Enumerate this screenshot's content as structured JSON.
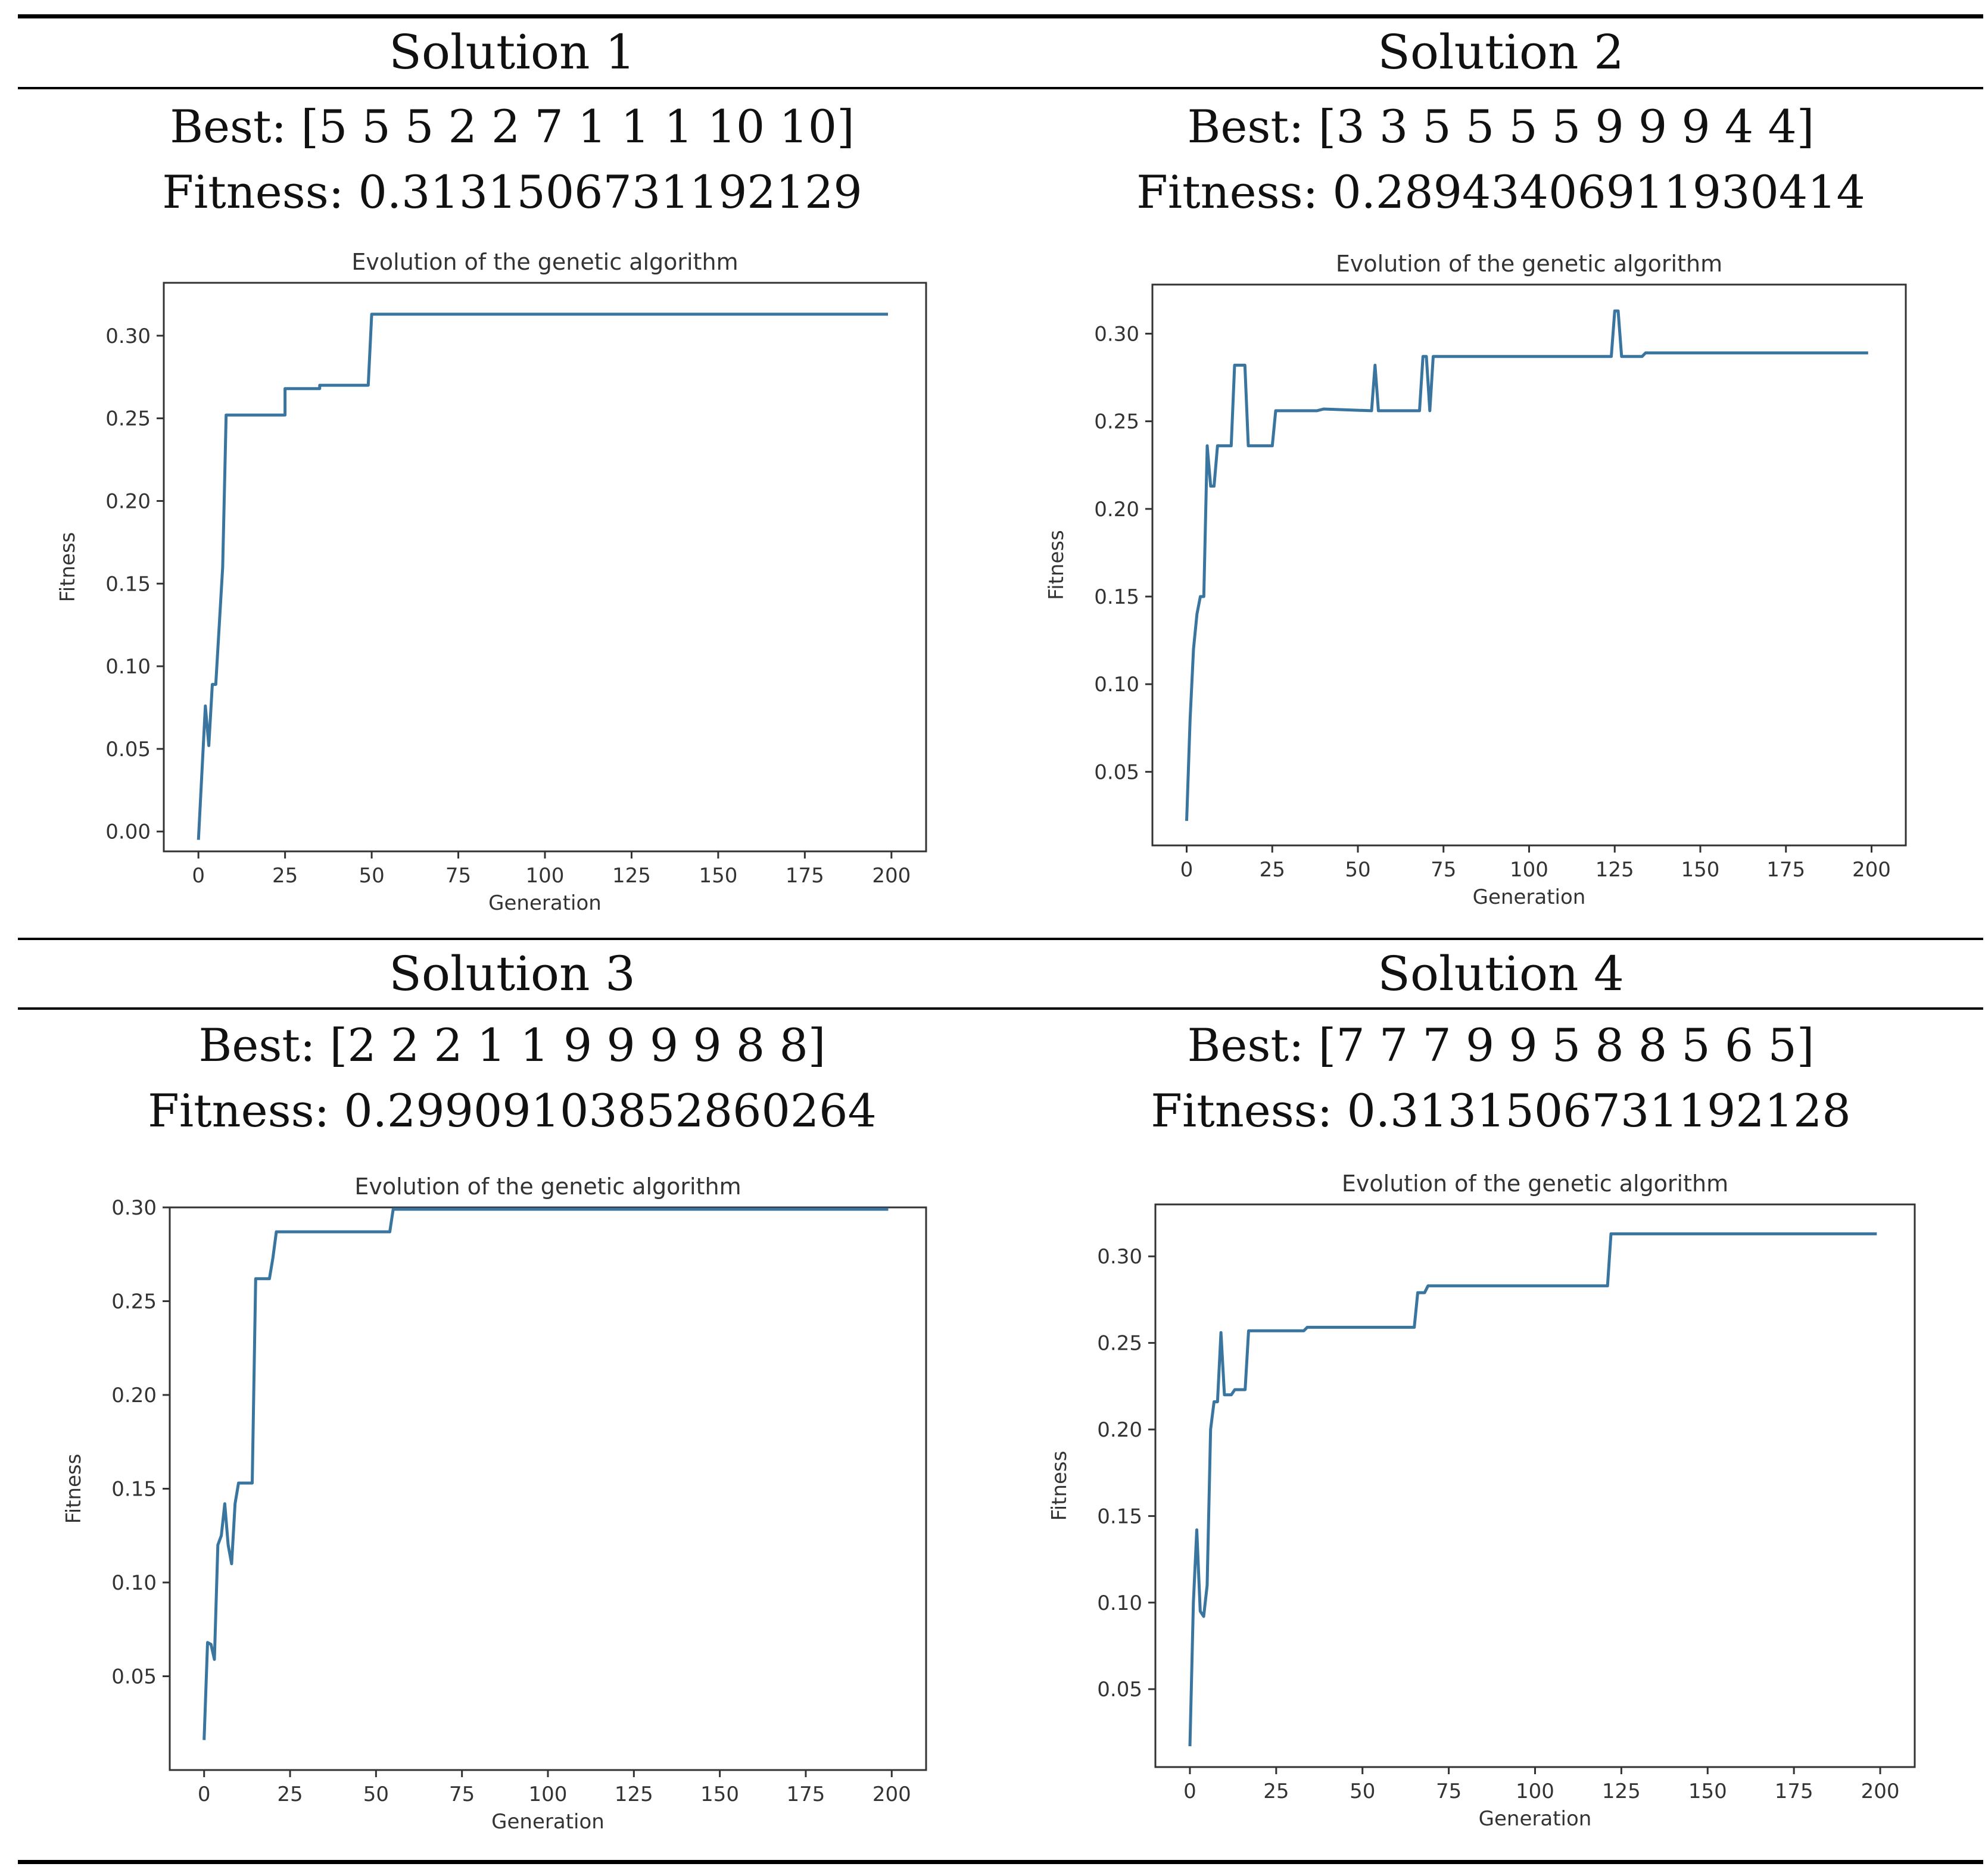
{
  "solutions": [
    {
      "title": "Solution 1",
      "best": "Best: [5 5 5 2 2 7 1 1 1 10 10]",
      "fitness": "Fitness: 0.3131506731192129",
      "chart_data": {
        "type": "line",
        "title": "Evolution of the genetic algorithm",
        "xlabel": "Generation",
        "ylabel": "Fitness",
        "xlim": [
          -10,
          210
        ],
        "ylim": [
          -0.012,
          0.332
        ],
        "xticks": [
          0,
          25,
          50,
          75,
          100,
          125,
          150,
          175,
          200
        ],
        "yticks": [
          0.0,
          0.05,
          0.1,
          0.15,
          0.2,
          0.25,
          0.3
        ],
        "ytick_labels": [
          "0.00",
          "0.05",
          "0.10",
          "0.15",
          "0.20",
          "0.25",
          "0.30"
        ],
        "line_color": "#3a75a0",
        "series": [
          {
            "name": "Fitness",
            "x": [
              0,
              2,
              3,
              4,
              5,
              7,
              8,
              25,
              25,
              35,
              35,
              49,
              50,
              199
            ],
            "y": [
              -0.005,
              0.076,
              0.052,
              0.089,
              0.089,
              0.16,
              0.252,
              0.252,
              0.268,
              0.268,
              0.27,
              0.27,
              0.313,
              0.313
            ]
          }
        ]
      }
    },
    {
      "title": "Solution 2",
      "best": "Best: [3 3 5 5 5 5 9 9 9 4 4]",
      "fitness": "Fitness: 0.28943406911930414",
      "chart_data": {
        "type": "line",
        "title": "Evolution of the genetic algorithm",
        "xlabel": "Generation",
        "ylabel": "Fitness",
        "xlim": [
          -10,
          210
        ],
        "ylim": [
          0.008,
          0.328
        ],
        "xticks": [
          0,
          25,
          50,
          75,
          100,
          125,
          150,
          175,
          200
        ],
        "yticks": [
          0.05,
          0.1,
          0.15,
          0.2,
          0.25,
          0.3
        ],
        "ytick_labels": [
          "0.05",
          "0.10",
          "0.15",
          "0.20",
          "0.25",
          "0.30"
        ],
        "line_color": "#3a75a0",
        "series": [
          {
            "name": "Fitness",
            "x": [
              0,
              1,
              2,
              3,
              4,
              5,
              6,
              7,
              8,
              9,
              13,
              14,
              17,
              18,
              25,
              26,
              38,
              40,
              54,
              55,
              56,
              68,
              69,
              70,
              71,
              72,
              124,
              125,
              126,
              127,
              133,
              134,
              199
            ],
            "y": [
              0.022,
              0.08,
              0.12,
              0.14,
              0.15,
              0.15,
              0.236,
              0.213,
              0.213,
              0.236,
              0.236,
              0.282,
              0.282,
              0.236,
              0.236,
              0.256,
              0.256,
              0.257,
              0.256,
              0.282,
              0.256,
              0.256,
              0.287,
              0.287,
              0.256,
              0.287,
              0.287,
              0.313,
              0.313,
              0.287,
              0.287,
              0.289,
              0.289
            ]
          }
        ]
      }
    },
    {
      "title": "Solution 3",
      "best": "Best: [2 2 2 1 1 9 9 9 9 8 8]",
      "fitness": "Fitness: 0.29909103852860264",
      "chart_data": {
        "type": "line",
        "title": "Evolution of the genetic algorithm",
        "xlabel": "Generation",
        "ylabel": "Fitness",
        "xlim": [
          -10,
          210
        ],
        "ylim": [
          0.0,
          0.3
        ],
        "xticks": [
          0,
          25,
          50,
          75,
          100,
          125,
          150,
          175,
          200
        ],
        "yticks": [
          0.05,
          0.1,
          0.15,
          0.2,
          0.25,
          0.3
        ],
        "ytick_labels": [
          "0.05",
          "0.10",
          "0.15",
          "0.20",
          "0.25",
          "0.30"
        ],
        "line_color": "#3a75a0",
        "series": [
          {
            "name": "Fitness",
            "x": [
              0,
              1,
              2,
              3,
              4,
              5,
              6,
              7,
              8,
              9,
              10,
              11,
              14,
              15,
              19,
              20,
              21,
              54,
              55,
              199
            ],
            "y": [
              0.016,
              0.068,
              0.067,
              0.059,
              0.12,
              0.125,
              0.142,
              0.12,
              0.11,
              0.142,
              0.153,
              0.153,
              0.153,
              0.262,
              0.262,
              0.273,
              0.287,
              0.287,
              0.299,
              0.299
            ]
          }
        ]
      }
    },
    {
      "title": "Solution 4",
      "best": "Best: [7 7 7 9 9 5 8 8 5 6 5]",
      "fitness": "Fitness: 0.3131506731192128",
      "chart_data": {
        "type": "line",
        "title": "Evolution of the genetic algorithm",
        "xlabel": "Generation",
        "ylabel": "Fitness",
        "xlim": [
          -10,
          210
        ],
        "ylim": [
          0.005,
          0.33
        ],
        "xticks": [
          0,
          25,
          50,
          75,
          100,
          125,
          150,
          175,
          200
        ],
        "yticks": [
          0.05,
          0.1,
          0.15,
          0.2,
          0.25,
          0.3
        ],
        "ytick_labels": [
          "0.05",
          "0.10",
          "0.15",
          "0.20",
          "0.25",
          "0.30"
        ],
        "line_color": "#3a75a0",
        "series": [
          {
            "name": "Fitness",
            "x": [
              0,
              1,
              2,
              3,
              4,
              5,
              6,
              7,
              8,
              9,
              10,
              12,
              13,
              16,
              17,
              33,
              34,
              65,
              66,
              68,
              69,
              121,
              122,
              199
            ],
            "y": [
              0.017,
              0.1,
              0.142,
              0.095,
              0.092,
              0.11,
              0.2,
              0.216,
              0.216,
              0.256,
              0.22,
              0.22,
              0.223,
              0.223,
              0.257,
              0.257,
              0.259,
              0.259,
              0.279,
              0.279,
              0.283,
              0.283,
              0.313,
              0.313
            ]
          }
        ]
      }
    }
  ]
}
